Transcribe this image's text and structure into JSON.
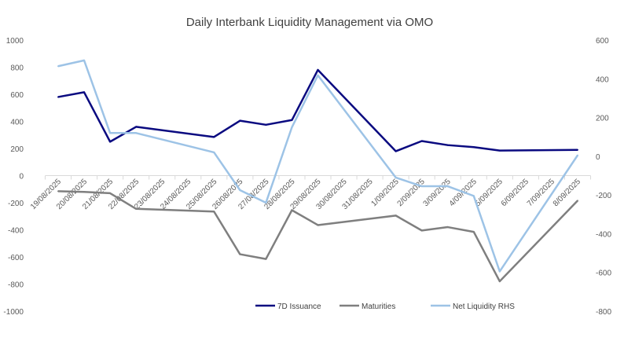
{
  "chart_data": {
    "type": "line",
    "title": "Daily Interbank Liquidity Management via OMO",
    "x": [
      "19/08/2025",
      "20/08/2025",
      "21/08/2025",
      "22/08/2025",
      "23/08/2025",
      "24/08/2025",
      "25/08/2025",
      "26/08/2025",
      "27/08/2025",
      "28/08/2025",
      "29/08/2025",
      "30/08/2025",
      "31/08/2025",
      "1/09/2025",
      "2/09/2025",
      "3/09/2025",
      "4/09/2025",
      "5/09/2025",
      "6/09/2025",
      "7/09/2025",
      "8/09/2025"
    ],
    "y_left": {
      "min": -1000,
      "max": 1000,
      "ticks": [
        "1000",
        "800",
        "600",
        "400",
        "200",
        "0",
        "-200",
        "-400",
        "-600",
        "-800",
        "-1000"
      ]
    },
    "y_right": {
      "min": -800,
      "max": 600,
      "ticks": [
        "600",
        "400",
        "200",
        "0",
        "-200",
        "-400",
        "-600",
        "-800"
      ]
    },
    "grid": false,
    "legend_position": "bottom",
    "series": [
      {
        "name": "7D Issuance",
        "axis": "left",
        "color": "#0A0A80",
        "values": [
          580,
          615,
          250,
          360,
          null,
          null,
          285,
          405,
          375,
          410,
          780,
          null,
          null,
          180,
          255,
          225,
          210,
          185,
          null,
          null,
          190
        ]
      },
      {
        "name": "Maturities",
        "axis": "left",
        "color": "#7F7F7F",
        "values": [
          -115,
          -120,
          -130,
          -245,
          null,
          null,
          -265,
          -580,
          -615,
          -255,
          -365,
          null,
          null,
          -295,
          -405,
          -380,
          -415,
          -780,
          null,
          null,
          -185
        ]
      },
      {
        "name": "Net Liquidity RHS",
        "axis": "right",
        "color": "#9DC3E6",
        "values": [
          465,
          495,
          120,
          120,
          null,
          null,
          20,
          -175,
          -240,
          150,
          418,
          null,
          null,
          -110,
          -155,
          -155,
          -205,
          -595,
          null,
          null,
          5
        ]
      }
    ]
  }
}
